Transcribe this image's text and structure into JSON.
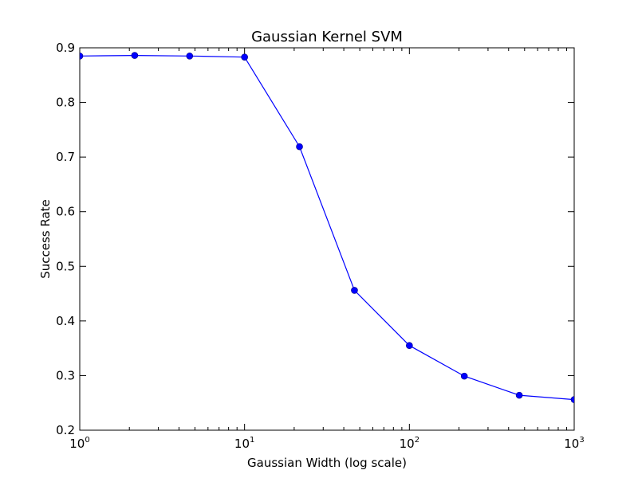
{
  "chart_data": {
    "type": "line",
    "title": "Gaussian Kernel SVM",
    "xlabel": "Gaussian Width (log scale)",
    "ylabel": "Success Rate",
    "x_scale": "log",
    "xlim": [
      1,
      1000
    ],
    "ylim": [
      0.2,
      0.9
    ],
    "grid": false,
    "x_ticks": [
      {
        "value": 1,
        "base": "10",
        "exp": "0"
      },
      {
        "value": 10,
        "base": "10",
        "exp": "1"
      },
      {
        "value": 100,
        "base": "10",
        "exp": "2"
      },
      {
        "value": 1000,
        "base": "10",
        "exp": "3"
      }
    ],
    "y_ticks": [
      {
        "value": 0.2,
        "label": "0.2"
      },
      {
        "value": 0.3,
        "label": "0.3"
      },
      {
        "value": 0.4,
        "label": "0.4"
      },
      {
        "value": 0.5,
        "label": "0.5"
      },
      {
        "value": 0.6,
        "label": "0.6"
      },
      {
        "value": 0.7,
        "label": "0.7"
      },
      {
        "value": 0.8,
        "label": "0.8"
      },
      {
        "value": 0.9,
        "label": "0.9"
      }
    ],
    "series": [
      {
        "color": "#0000ff",
        "marker": "circle",
        "x": [
          1,
          2.154,
          4.642,
          10,
          21.54,
          46.42,
          100,
          215.4,
          464.2,
          1000
        ],
        "y": [
          0.885,
          0.886,
          0.885,
          0.883,
          0.719,
          0.456,
          0.355,
          0.299,
          0.264,
          0.256
        ]
      }
    ]
  }
}
